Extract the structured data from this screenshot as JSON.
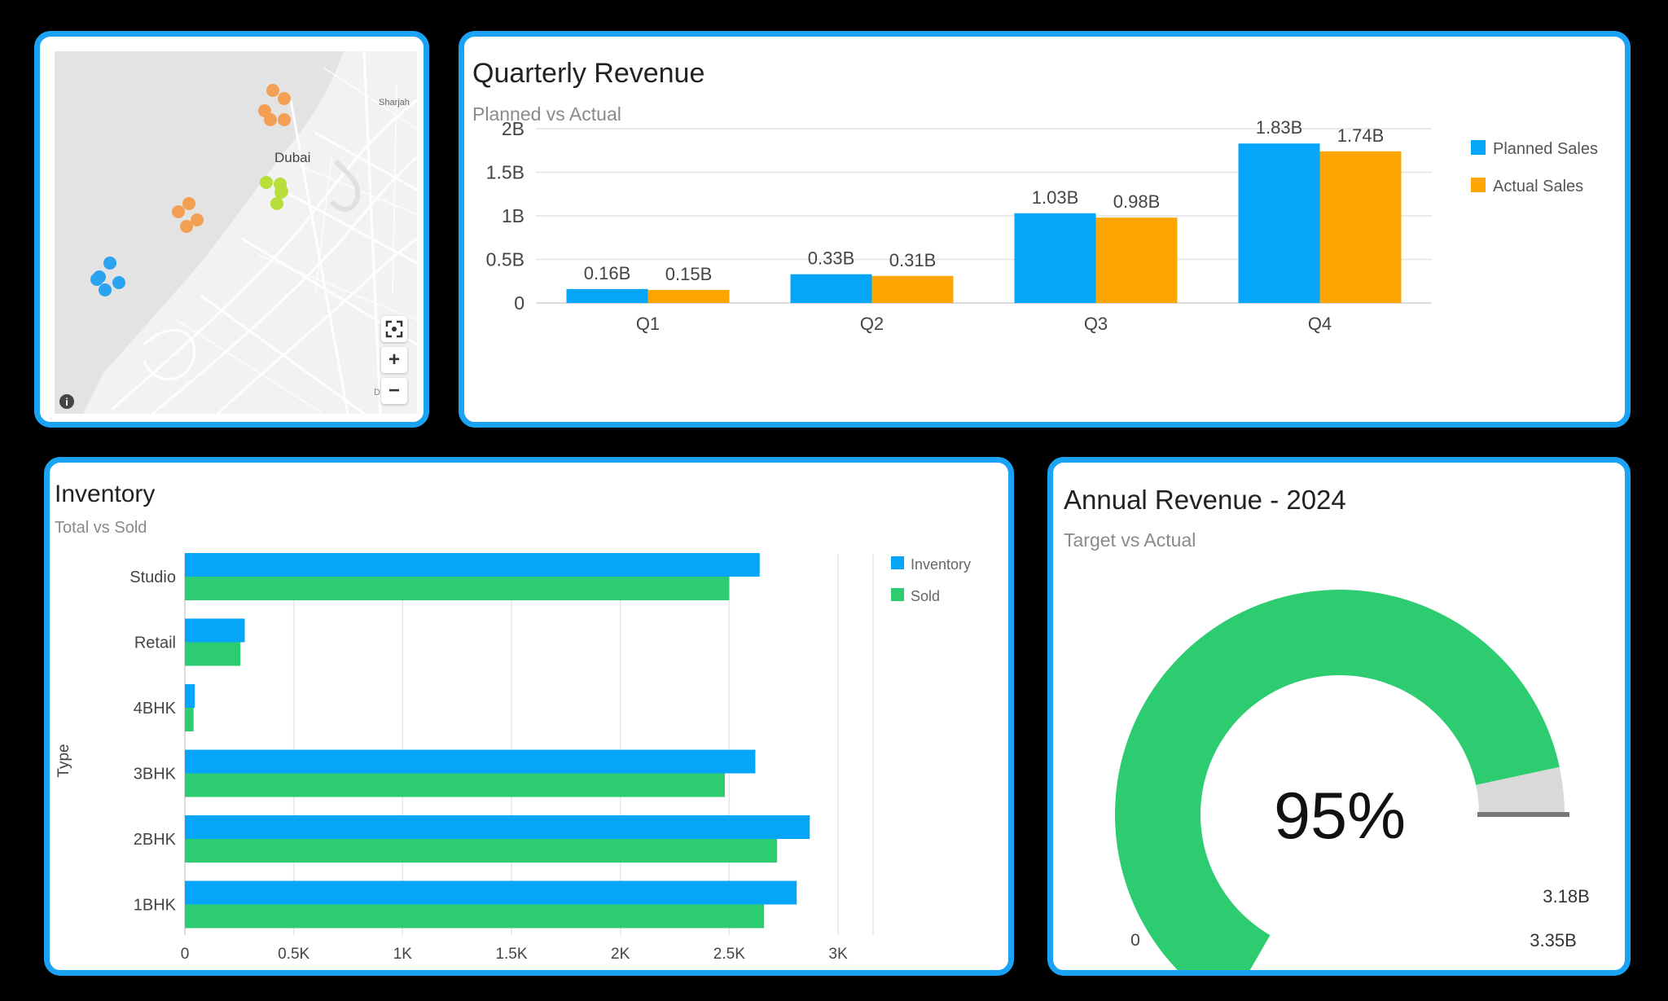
{
  "map": {
    "labels": {
      "city": "Dubai",
      "city2": "Sharjah"
    },
    "markers": [
      {
        "color": "#f4a054"
      },
      {
        "color": "#f4a054"
      },
      {
        "color": "#f4a054"
      },
      {
        "color": "#f4a054"
      },
      {
        "color": "#f4a054"
      },
      {
        "color": "#f4a054"
      },
      {
        "color": "#f4a054"
      },
      {
        "color": "#f4a054"
      },
      {
        "color": "#f4a054"
      },
      {
        "color": "#b8de3a"
      },
      {
        "color": "#b8de3a"
      },
      {
        "color": "#b8de3a"
      },
      {
        "color": "#b8de3a"
      },
      {
        "color": "#b8de3a"
      },
      {
        "color": "#2ba3f0"
      },
      {
        "color": "#2ba3f0"
      },
      {
        "color": "#2ba3f0"
      },
      {
        "color": "#2ba3f0"
      },
      {
        "color": "#2ba3f0"
      }
    ],
    "controls": {
      "fit_icon": "focus-icon",
      "zoom_in": "+",
      "zoom_out": "−",
      "info_icon": "info-icon"
    }
  },
  "quarterly": {
    "title": "Quarterly Revenue",
    "subtitle": "Planned vs Actual",
    "chart_data": {
      "type": "bar",
      "categories": [
        "Q1",
        "Q2",
        "Q3",
        "Q4"
      ],
      "series": [
        {
          "name": "Planned Sales",
          "values": [
            0.16,
            0.33,
            1.03,
            1.83
          ],
          "labels": [
            "0.16B",
            "0.33B",
            "1.03B",
            "1.83B"
          ],
          "color": "#05a6fa"
        },
        {
          "name": "Actual Sales",
          "values": [
            0.15,
            0.31,
            0.98,
            1.74
          ],
          "labels": [
            "0.15B",
            "0.31B",
            "0.98B",
            "1.74B"
          ],
          "color": "#fca503"
        }
      ],
      "yticks": [
        0,
        0.5,
        1,
        1.5,
        2
      ],
      "ytick_labels": [
        "0",
        "0.5B",
        "1B",
        "1.5B",
        "2B"
      ],
      "ylim": [
        0,
        2
      ],
      "grid": true,
      "legend": "top-right"
    }
  },
  "inventory": {
    "title": "Inventory",
    "subtitle": "Total vs Sold",
    "chart_data": {
      "type": "bar",
      "orientation": "horizontal",
      "categories": [
        "Studio",
        "Retail",
        "4BHK",
        "3BHK",
        "2BHK",
        "1BHK"
      ],
      "series": [
        {
          "name": "Inventory",
          "values": [
            2640,
            275,
            45,
            2620,
            2870,
            2810
          ],
          "color": "#05a6fa"
        },
        {
          "name": "Sold",
          "values": [
            2500,
            255,
            40,
            2480,
            2720,
            2660
          ],
          "color": "#2ecc71"
        }
      ],
      "xticks": [
        0,
        500,
        1000,
        1500,
        2000,
        2500,
        3000
      ],
      "xtick_labels": [
        "0",
        "0.5K",
        "1K",
        "1.5K",
        "2K",
        "2.5K",
        "3K"
      ],
      "xlim": [
        0,
        3000
      ],
      "ylabel": "Type",
      "grid": true,
      "legend": "top-right"
    }
  },
  "annual": {
    "title": "Annual Revenue - 2024",
    "subtitle": "Target vs Actual",
    "chart_data": {
      "type": "gauge",
      "value": 3.18,
      "target": 3.35,
      "min": 0,
      "percent_label": "95%",
      "min_label": "0",
      "value_label": "3.18B",
      "target_label": "3.35B",
      "fill_color": "#2ecc71",
      "rest_color": "#d9d9d9",
      "needle_color": "#777777"
    }
  }
}
